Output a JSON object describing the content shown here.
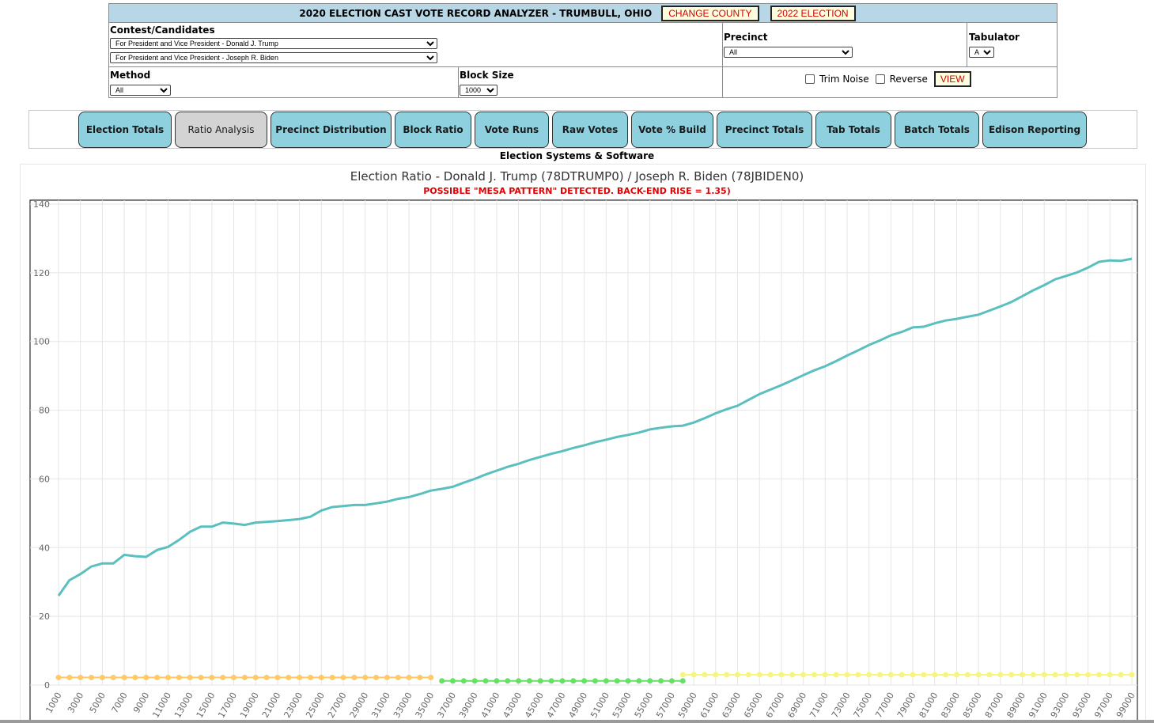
{
  "header": {
    "title": "2020 ELECTION CAST VOTE RECORD ANALYZER - TRUMBULL, OHIO",
    "change_county": "CHANGE COUNTY",
    "election_2022": "2022 ELECTION"
  },
  "controls": {
    "contest_label": "Contest/Candidates",
    "candidate1": "For President and Vice President - Donald J. Trump",
    "candidate2": "For President and Vice President - Joseph R. Biden",
    "precinct_label": "Precinct",
    "precinct_value": "All",
    "tabulator_label": "Tabulator",
    "tabulator_value": "All",
    "method_label": "Method",
    "method_value": "All",
    "block_label": "Block Size",
    "block_value": "1000",
    "trim_noise": "Trim Noise",
    "reverse": "Reverse",
    "view": "VIEW"
  },
  "tabs": [
    {
      "label": "Election Totals",
      "active": false
    },
    {
      "label": "Ratio Analysis",
      "active": true
    },
    {
      "label": "Precinct Distribution",
      "active": false
    },
    {
      "label": "Block Ratio",
      "active": false
    },
    {
      "label": "Vote Runs",
      "active": false
    },
    {
      "label": "Raw Votes",
      "active": false
    },
    {
      "label": "Vote % Build",
      "active": false
    },
    {
      "label": "Precinct Totals",
      "active": false
    },
    {
      "label": "Tab Totals",
      "active": false
    },
    {
      "label": "Batch Totals",
      "active": false
    },
    {
      "label": "Edison Reporting",
      "active": false
    }
  ],
  "vendor": "Election Systems & Software",
  "chart_title": "Election Ratio - Donald J. Trump (78DTRUMP0) / Joseph R. Biden (78JBIDEN0)",
  "chart_subtitle": "POSSIBLE \"MESA PATTERN\" DETECTED. BACK-END RISE = 1.35)",
  "colors": {
    "ratio_line": "#5bbfbf",
    "seg_orange": "#ffc966",
    "seg_green": "#66e066",
    "seg_yellow": "#f5f580",
    "title_red": "#e00000"
  },
  "chart_data": {
    "type": "line",
    "ylim": [
      0,
      140
    ],
    "yticks": [
      0,
      20,
      40,
      60,
      80,
      100,
      120,
      140
    ],
    "x_start": 1000,
    "x_step": 1000,
    "x_count": 99,
    "x_tick_step": 2000,
    "grid": true,
    "series": [
      {
        "values": [
          26,
          30.5,
          32.3,
          34.5,
          35.4,
          35.4,
          37.9,
          37.5,
          37.3,
          39.3,
          40.2,
          42.2,
          44.6,
          46.1,
          46.1,
          47.3,
          47,
          46.6,
          47.3,
          47.5,
          47.7,
          48,
          48.3,
          49,
          50.8,
          51.8,
          52.1,
          52.4,
          52.4,
          52.9,
          53.4,
          54.2,
          54.7,
          55.6,
          56.6,
          57.1,
          57.7,
          58.9,
          60,
          61.3,
          62.4,
          63.5,
          64.4,
          65.5,
          66.4,
          67.3,
          68.1,
          69,
          69.8,
          70.7,
          71.4,
          72.2,
          72.8,
          73.5,
          74.4,
          74.9,
          75.3,
          75.5,
          76.4,
          77.7,
          79.1,
          80.3,
          81.3,
          83,
          84.7,
          86,
          87.3,
          88.7,
          90.2,
          91.6,
          92.8,
          94.3,
          95.9,
          97.4,
          99,
          100.3,
          101.8,
          102.8,
          104.1,
          104.3,
          105.3,
          106.1,
          106.6,
          107.2,
          107.8,
          109,
          110.2,
          111.5,
          113.2,
          114.9,
          116.4,
          118.1,
          119.1,
          120.1,
          121.5,
          123.2,
          123.6,
          123.5,
          124.1
        ]
      },
      {
        "values": [
          2.2,
          2.2,
          2.2,
          2.2,
          2.2,
          2.2,
          2.2,
          2.2,
          2.2,
          2.2,
          2.2,
          2.2,
          2.2,
          2.2,
          2.2,
          2.2,
          2.2,
          2.2,
          2.2,
          2.2,
          2.2,
          2.2,
          2.2,
          2.2,
          2.2,
          2.2,
          2.2,
          2.2,
          2.2,
          2.2,
          2.2,
          2.2,
          2.2,
          2.2,
          2.2
        ]
      },
      {
        "x_offset": 35,
        "values": [
          1.2,
          1.2,
          1.2,
          1.2,
          1.2,
          1.2,
          1.2,
          1.2,
          1.2,
          1.2,
          1.2,
          1.2,
          1.2,
          1.2,
          1.2,
          1.2,
          1.2,
          1.2,
          1.2,
          1.2,
          1.2,
          1.2,
          1.2
        ]
      },
      {
        "x_offset": 57,
        "values": [
          3,
          3,
          3,
          3,
          3,
          3,
          3,
          3,
          3,
          3,
          3,
          3,
          3,
          3,
          3,
          3,
          3,
          3,
          3,
          3,
          3,
          3,
          3,
          3,
          3,
          3,
          3,
          3,
          3,
          3,
          3,
          3,
          3,
          3,
          3,
          3,
          3,
          3,
          3,
          3,
          3,
          3
        ]
      }
    ]
  }
}
